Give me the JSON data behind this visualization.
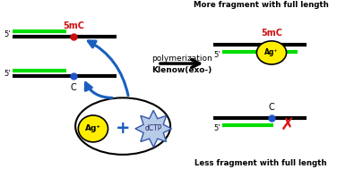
{
  "bg_color": "#ffffff",
  "ag_label": "Ag⁺",
  "dctp_label": "dCTP",
  "klenow_label": "Klenow(exo-)",
  "poly_label": "polymerization",
  "less_label": "Less fragment with full length",
  "more_label": "More fragment with full length",
  "c_label": "C",
  "smc_label": "5mC",
  "five_prime": "5’",
  "green": "#00dd00",
  "black": "#000000",
  "blue_dot": "#2255cc",
  "red_dot": "#cc1111",
  "blue_arrow": "#1a5fbf",
  "plus_color": "#1a5fbf"
}
